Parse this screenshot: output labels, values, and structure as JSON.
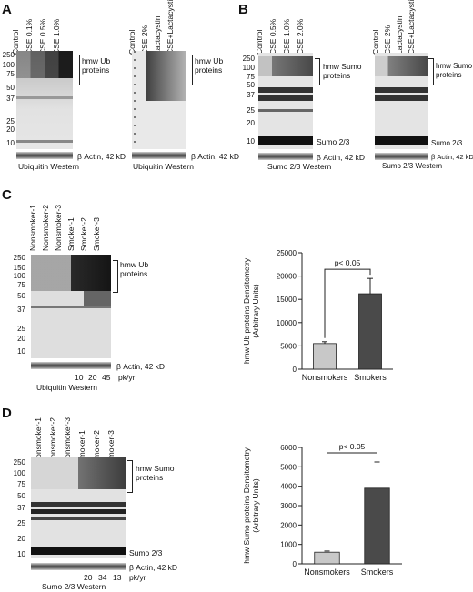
{
  "panels": {
    "A": {
      "label": "A",
      "blot1": {
        "lanes": [
          "Control",
          "CSE 0.1%",
          "CSE 0.5%",
          "CSE 1.0%"
        ],
        "mw_markers": [
          "250",
          "100",
          "75",
          "50",
          "37",
          "25",
          "20",
          "10"
        ],
        "bracket_label": "hmw Ub\nproteins",
        "actin_label": "β Actin, 42 kD",
        "western_label": "Ubiquitin Western"
      },
      "blot2": {
        "lanes": [
          "Control",
          "CSE 2%",
          "Lactacystin",
          "CSE+Lactacystin"
        ],
        "bracket_label": "hmw Ub\nproteins",
        "actin_label": "β Actin, 42 kD",
        "western_label": "Ubiquitin Western"
      }
    },
    "B": {
      "label": "B",
      "blot1": {
        "lanes": [
          "Control",
          "CSE 0.5%",
          "CSE 1.0%",
          "CSE 2.0%"
        ],
        "mw_markers": [
          "250",
          "100",
          "75",
          "50",
          "37",
          "25",
          "20",
          "10"
        ],
        "bracket_label": "hmw Sumo\nproteins",
        "band_label": "Sumo 2/3",
        "actin_label": "β Actin, 42 kD",
        "western_label": "Sumo 2/3 Western"
      },
      "blot2": {
        "lanes": [
          "Control",
          "CSE 2%",
          "Lactacystin",
          "CSE+Lactacystin"
        ],
        "bracket_label": "hmw Sumo\nproteins",
        "band_label": "Sumo 2/3",
        "actin_label": "β Actin, 42 kD",
        "western_label": "Sumo 2/3 Western"
      }
    },
    "C": {
      "label": "C",
      "lanes": [
        "Nonsmoker-1",
        "Nonsmoker-2",
        "Nonsmoker-3",
        "Smoker-1",
        "Smoker-2",
        "Smoker-3"
      ],
      "mw_markers": [
        "250",
        "150",
        "100",
        "75",
        "50",
        "37",
        "25",
        "20",
        "10"
      ],
      "bracket_label": "hmw Ub\nproteins",
      "actin_label": "β Actin, 42 kD",
      "packyears": [
        "10",
        "20",
        "45"
      ],
      "packyear_unit": "pk/yr",
      "western_label": "Ubiquitin Western"
    },
    "D": {
      "label": "D",
      "lanes": [
        "Nonsmoker-1",
        "Nonsmoker-2",
        "Nonsmoker-3",
        "Smoker-1",
        "Smoker-2",
        "Smoker-3"
      ],
      "mw_markers": [
        "250",
        "100",
        "75",
        "50",
        "37",
        "25",
        "20",
        "10"
      ],
      "bracket_label": "hmw Sumo\nproteins",
      "band_label": "Sumo 2/3",
      "actin_label": "β Actin, 42 kD",
      "packyears": [
        "20",
        "34",
        "13"
      ],
      "packyear_unit": "pk/yr",
      "western_label": "Sumo 2/3 Western"
    }
  },
  "chart_data": [
    {
      "type": "bar",
      "panel": "C",
      "categories": [
        "Nonsmokers",
        "Smokers"
      ],
      "values": [
        5500,
        16200
      ],
      "errors": [
        400,
        3300
      ],
      "colors": [
        "#c8c8c8",
        "#4a4a4a"
      ],
      "ylabel": "hmw Ub proteins Densitometry\n(Arbitrary Units)",
      "ylim": [
        0,
        25000
      ],
      "yticks": [
        "0",
        "5000",
        "10000",
        "15000",
        "20000",
        "25000"
      ],
      "yticks_values": [
        0,
        5000,
        10000,
        15000,
        20000,
        25000
      ],
      "annotation": "p< 0.05"
    },
    {
      "type": "bar",
      "panel": "D",
      "categories": [
        "Nonsmokers",
        "Smokers"
      ],
      "values": [
        600,
        3900
      ],
      "errors": [
        60,
        1350
      ],
      "colors": [
        "#c8c8c8",
        "#4a4a4a"
      ],
      "ylabel": "hmw Sumo proteins Densitometry\n(Arbitrary Units)",
      "ylim": [
        0,
        6000
      ],
      "yticks": [
        "0",
        "1000",
        "2000",
        "3000",
        "4000",
        "5000",
        "6000"
      ],
      "yticks_values": [
        0,
        1000,
        2000,
        3000,
        4000,
        5000,
        6000
      ],
      "annotation": "p< 0.05"
    }
  ]
}
